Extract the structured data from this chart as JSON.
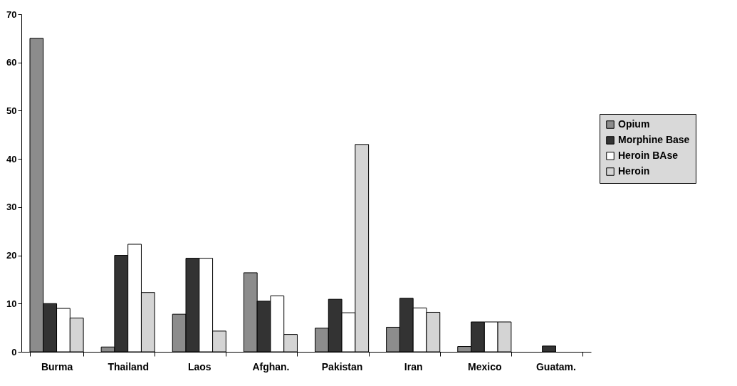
{
  "chart_data": {
    "type": "bar",
    "categories": [
      "Burma",
      "Thailand",
      "Laos",
      "Afghan.",
      "Pakistan",
      "Iran",
      "Mexico",
      "Guatam."
    ],
    "series": [
      {
        "name": "Opium",
        "color": "#8c8c8c",
        "values": [
          65,
          1,
          7.8,
          16.4,
          4.9,
          5.1,
          1.1,
          null
        ]
      },
      {
        "name": "Morphine Base",
        "color": "#333333",
        "values": [
          10,
          20,
          19.4,
          10.5,
          10.9,
          11.1,
          6.2,
          1.2
        ]
      },
      {
        "name": "Heroin BAse",
        "color": "#ffffff",
        "values": [
          9,
          22.3,
          19.4,
          11.6,
          8.1,
          9.1,
          6.2,
          null
        ]
      },
      {
        "name": "Heroin",
        "color": "#d4d4d4",
        "values": [
          7,
          12.3,
          4.3,
          3.6,
          43,
          8.2,
          6.2,
          null
        ]
      }
    ],
    "ylim": [
      0,
      70
    ],
    "yticks": [
      0,
      10,
      20,
      30,
      40,
      50,
      60,
      70
    ],
    "grid": false,
    "legend": "right"
  }
}
